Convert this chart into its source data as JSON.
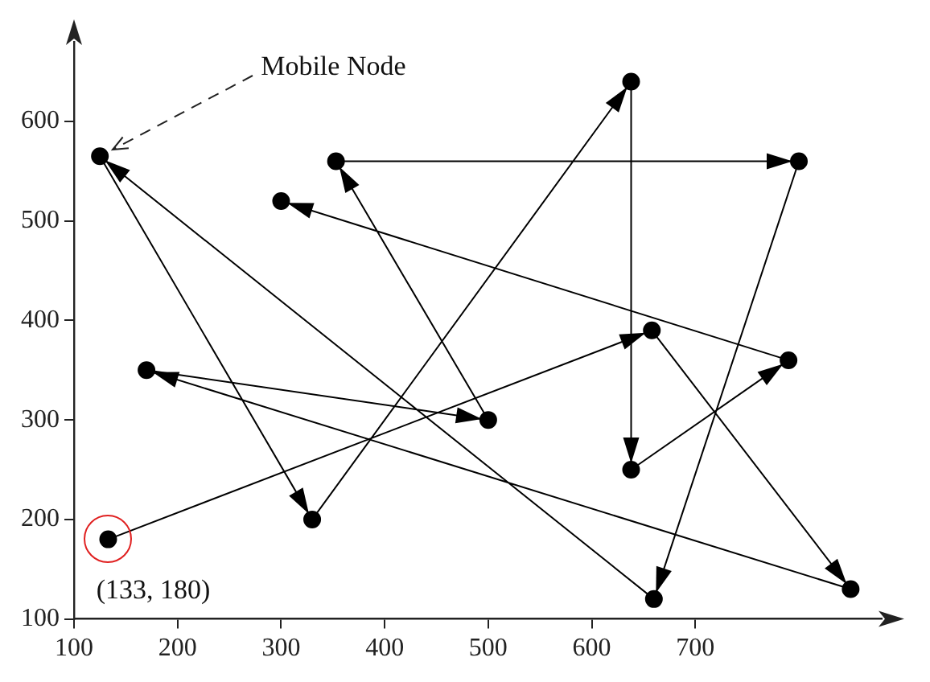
{
  "chart_data": {
    "type": "line",
    "x": [
      133,
      658,
      850,
      170,
      500,
      353,
      800,
      660,
      125,
      330,
      638,
      638,
      790,
      300
    ],
    "series": [
      {
        "color": "#000000",
        "values": [
          180,
          390,
          130,
          350,
          300,
          560,
          560,
          120,
          565,
          200,
          640,
          250,
          360,
          520
        ]
      }
    ],
    "xlim": [
      100,
      880
    ],
    "ylim": [
      100,
      680
    ],
    "xticks": [
      100,
      200,
      300,
      400,
      500,
      600,
      700
    ],
    "yticks": [
      100,
      200,
      300,
      400,
      500,
      600
    ],
    "grid": false,
    "legend": false,
    "marker": "circle",
    "line_style": "solid",
    "annotations": [
      {
        "text": "Mobile Node",
        "x": 125,
        "y": 565
      },
      {
        "text": "(133, 180)",
        "x": 133,
        "y": 180
      }
    ]
  }
}
